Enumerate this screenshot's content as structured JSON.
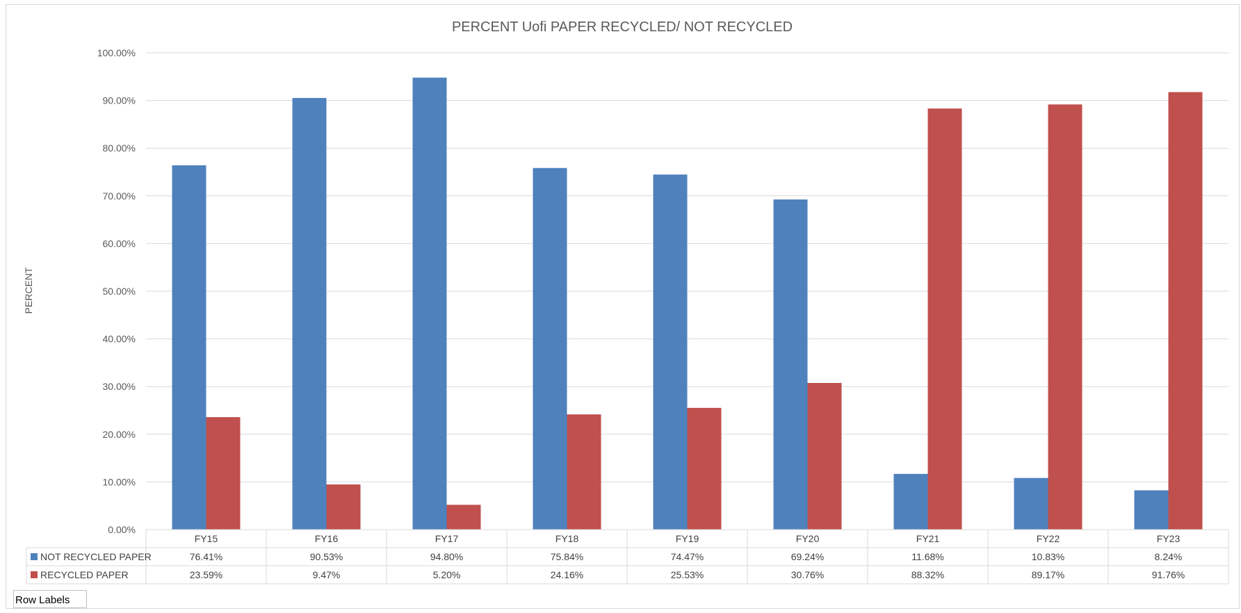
{
  "row_labels_button": "Row Labels",
  "chart_data": {
    "type": "bar",
    "title": "PERCENT Uofi PAPER RECYCLED/ NOT RECYCLED",
    "ylabel": "PERCENT",
    "xlabel": "",
    "ylim": [
      0,
      100
    ],
    "yticks": [
      "0.00%",
      "10.00%",
      "20.00%",
      "30.00%",
      "40.00%",
      "50.00%",
      "60.00%",
      "70.00%",
      "80.00%",
      "90.00%",
      "100.00%"
    ],
    "grid": true,
    "legend": "data-table",
    "categories": [
      "FY15",
      "FY16",
      "FY17",
      "FY18",
      "FY19",
      "FY20",
      "FY21",
      "FY22",
      "FY23"
    ],
    "series": [
      {
        "name": "NOT RECYCLED PAPER",
        "color": "#4f81bd",
        "values": [
          76.41,
          90.53,
          94.8,
          75.84,
          74.47,
          69.24,
          11.68,
          10.83,
          8.24
        ],
        "labels": [
          "76.41%",
          "90.53%",
          "94.80%",
          "75.84%",
          "74.47%",
          "69.24%",
          "11.68%",
          "10.83%",
          "8.24%"
        ]
      },
      {
        "name": "RECYCLED PAPER",
        "color": "#c0504d",
        "values": [
          23.59,
          9.47,
          5.2,
          24.16,
          25.53,
          30.76,
          88.32,
          89.17,
          91.76
        ],
        "labels": [
          "23.59%",
          "9.47%",
          "5.20%",
          "24.16%",
          "25.53%",
          "30.76%",
          "88.32%",
          "89.17%",
          "91.76%"
        ]
      }
    ]
  }
}
